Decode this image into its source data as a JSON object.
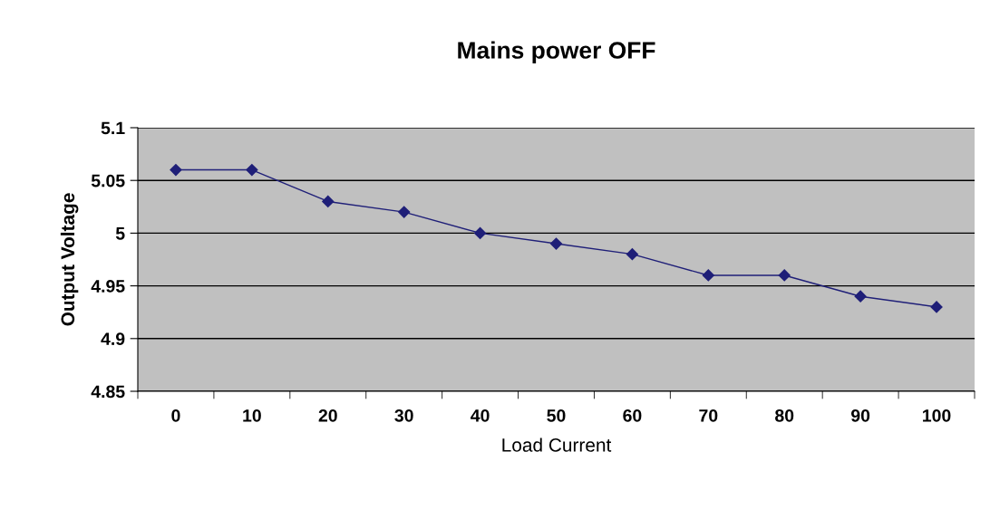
{
  "chart_data": {
    "type": "line",
    "title": "Mains power OFF",
    "xlabel": "Load Current",
    "ylabel": "Output Voltage",
    "categories": [
      "0",
      "10",
      "20",
      "30",
      "40",
      "50",
      "60",
      "70",
      "80",
      "90",
      "100"
    ],
    "series": [
      {
        "color": "#1f1f78",
        "values": [
          5.06,
          5.06,
          5.03,
          5.02,
          5.0,
          4.99,
          4.98,
          4.96,
          4.96,
          4.94,
          4.93
        ]
      }
    ],
    "ylim": [
      4.85,
      5.1
    ],
    "yticks": [
      4.85,
      4.9,
      4.95,
      5,
      5.05,
      5.1
    ],
    "grid": "y",
    "legend": false,
    "marker": "diamond",
    "line_style": "solid"
  }
}
